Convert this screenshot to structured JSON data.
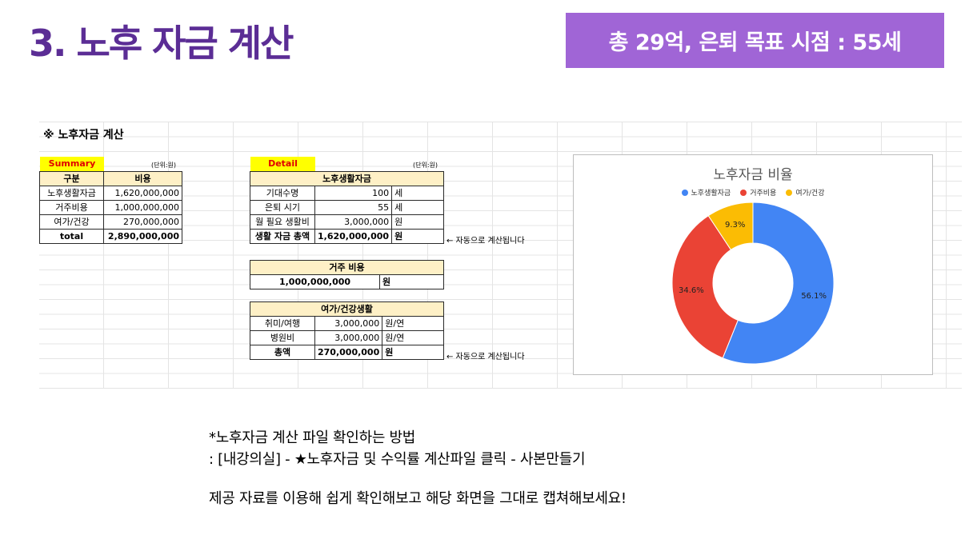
{
  "slide": {
    "title": "3. 노후 자금 계산",
    "banner": "총 29억, 은퇴 목표 시점  : 55세"
  },
  "sheet": {
    "title": "※ 노후자금 계산",
    "summary": {
      "tag": "Summary",
      "unit": "(단위:원)",
      "headers": [
        "구분",
        "비용"
      ],
      "rows": [
        [
          "노후생활자금",
          "1,620,000,000"
        ],
        [
          "거주비용",
          "1,000,000,000"
        ],
        [
          "여가/건강",
          "270,000,000"
        ],
        [
          "total",
          "2,890,000,000"
        ]
      ]
    },
    "detail": {
      "tag": "Detail",
      "unit": "(단위:원)",
      "living": {
        "header": "노후생활자금",
        "rows": [
          [
            "기대수명",
            "100",
            "세"
          ],
          [
            "은퇴 시기",
            "55",
            "세"
          ],
          [
            "월 필요 생활비",
            "3,000,000",
            "원"
          ],
          [
            "생활 자금 총액",
            "1,620,000,000",
            "원"
          ]
        ],
        "note": "← 자동으로 계산됩니다"
      },
      "housing": {
        "header": "거주 비용",
        "value": "1,000,000,000",
        "unit": "원"
      },
      "leisure": {
        "header": "여가/건강생활",
        "rows": [
          [
            "취미/여행",
            "3,000,000",
            "원/연"
          ],
          [
            "병원비",
            "3,000,000",
            "원/연"
          ],
          [
            "총액",
            "270,000,000",
            "원"
          ]
        ],
        "note": "← 자동으로 계산됩니다"
      }
    }
  },
  "chart_data": {
    "type": "pie",
    "title": "노후자금 비율",
    "categories": [
      "노후생활자금",
      "거주비용",
      "여가/건강"
    ],
    "values": [
      56.1,
      34.6,
      9.3
    ],
    "value_labels": [
      "56.1%",
      "34.6%",
      "9.3%"
    ],
    "colors": [
      "#4285f4",
      "#ea4335",
      "#fbbc04"
    ],
    "donut": true,
    "legend": "top"
  },
  "instructions": {
    "line1": "*노후자금 계산 파일 확인하는 방법",
    "line2": ": [내강의실] - ★노후자금 및 수익률 계산파일 클릭 - 사본만들기",
    "line3": "제공 자료를 이용해 쉽게 확인해보고 해당 화면을 그대로 캡쳐해보세요!"
  }
}
